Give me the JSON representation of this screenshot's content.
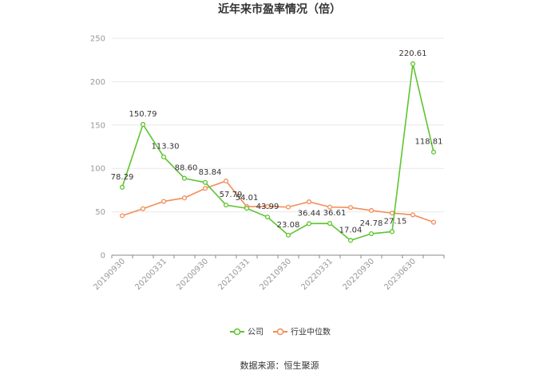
{
  "chart_data": {
    "type": "line",
    "title": "近年来市盈率情况（倍）",
    "xlabel": "",
    "ylabel": "",
    "ylim": [
      0,
      250
    ],
    "yticks": [
      0,
      50,
      100,
      150,
      200,
      250
    ],
    "grid": true,
    "legend_position": "bottom",
    "x_tick_labels": [
      "20190930",
      "20200331",
      "20200930",
      "20210331",
      "20210930",
      "20220331",
      "20220930",
      "20230630"
    ],
    "colors": {
      "company": "#5ec42f",
      "industry": "#f28d5a"
    },
    "series": [
      {
        "name": "公司",
        "values": [
          78.29,
          150.79,
          113.3,
          88.6,
          83.84,
          57.79,
          54.01,
          43.99,
          23.08,
          36.44,
          36.61,
          17.04,
          24.78,
          27.15,
          220.61,
          118.81
        ],
        "labels": [
          "78.29",
          "150.79",
          "113.30",
          "88.60",
          "83.84",
          "57.79",
          "54.01",
          "43.99",
          "23.08",
          "36.44",
          "36.61",
          "17.04",
          "24.78",
          "27.15",
          "220.61",
          "118.81"
        ]
      },
      {
        "name": "行业中位数",
        "values": [
          45.5,
          53.5,
          62,
          66,
          77,
          85.5,
          56,
          56,
          55.5,
          61.5,
          55.5,
          55,
          51.5,
          48.5,
          46.5,
          38
        ]
      }
    ]
  },
  "source": "数据来源：恒生聚源"
}
